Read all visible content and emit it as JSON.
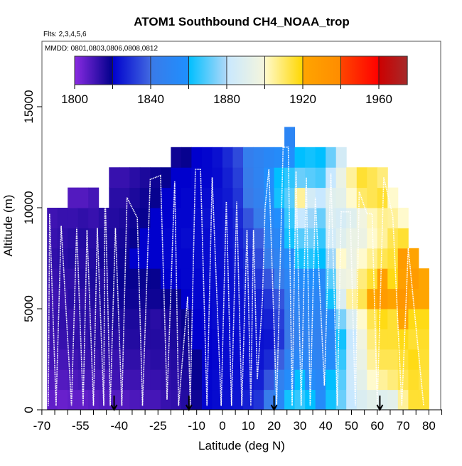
{
  "chart_data": {
    "type": "heatmap",
    "title": "ATOM1 Southbound CH4_NOAA_trop",
    "subtitle": "Flts: 2,3,4,5,6",
    "legend_note": "MMDD: 0801,0803,0806,0808,0812",
    "xlabel": "Latitude (deg N)",
    "ylabel": "Altitude (m)",
    "xlim": [
      -70,
      85
    ],
    "ylim": [
      0,
      18200
    ],
    "x_ticks": [
      -70,
      -55,
      -40,
      -25,
      -10,
      0,
      10,
      20,
      30,
      40,
      50,
      60,
      70,
      80
    ],
    "x_tick_labels": [
      "-70",
      "-55",
      "-40",
      "-25",
      "-10",
      "0",
      "10",
      "20",
      "30",
      "40",
      "50",
      "60",
      "70",
      "80"
    ],
    "y_ticks": [
      0,
      5000,
      10000,
      15000
    ],
    "y_tick_labels": [
      "0",
      "5000",
      "10000",
      "15000"
    ],
    "colorbar": {
      "range": [
        1800,
        1975
      ],
      "ticks": [
        1800,
        1840,
        1880,
        1920,
        1960
      ],
      "tick_labels": [
        "1800",
        "1840",
        "1880",
        "1920",
        "1960"
      ],
      "segments": [
        {
          "from": 1800,
          "to": 1820,
          "c0": "#8a2be2",
          "c1": "#00008b"
        },
        {
          "from": 1820,
          "to": 1840,
          "c0": "#0000cd",
          "c1": "#4169e1"
        },
        {
          "from": 1840,
          "to": 1860,
          "c0": "#3a7ae8",
          "c1": "#1e90ff"
        },
        {
          "from": 1860,
          "to": 1880,
          "c0": "#00bfff",
          "c1": "#b0d8f8"
        },
        {
          "from": 1880,
          "to": 1900,
          "c0": "#c8e8ff",
          "c1": "#f5f5dc"
        },
        {
          "from": 1900,
          "to": 1920,
          "c0": "#fffacd",
          "c1": "#ffd700"
        },
        {
          "from": 1920,
          "to": 1940,
          "c0": "#ffa500",
          "c1": "#ff8c00"
        },
        {
          "from": 1940,
          "to": 1960,
          "c0": "#ff4500",
          "c1": "#ff0000"
        },
        {
          "from": 1960,
          "to": 1975,
          "c0": "#cd0000",
          "c1": "#a52a2a"
        }
      ]
    },
    "lat_bin_deg": 4,
    "alt_bin_m": 1000,
    "columns": [
      {
        "lat": -68,
        "values": [
          1806,
          1808,
          1810,
          1811,
          1812,
          1811,
          1812,
          1813,
          1812,
          1811
        ]
      },
      {
        "lat": -64,
        "values": [
          1805,
          1808,
          1810,
          1812,
          1813,
          1812,
          1813,
          1814,
          1813,
          1812
        ]
      },
      {
        "lat": -60,
        "values": [
          1806,
          1809,
          1811,
          1813,
          1812,
          1814,
          1813,
          1815,
          1814,
          1812,
          1808
        ]
      },
      {
        "lat": -56,
        "values": [
          1806,
          1810,
          1812,
          1813,
          1814,
          1813,
          1815,
          1814,
          1815,
          1813,
          1808
        ]
      },
      {
        "lat": -52,
        "values": [
          1807,
          1810,
          1812,
          1814,
          1813,
          1815,
          1816,
          1815,
          1814,
          1812,
          1810
        ]
      },
      {
        "lat": -48,
        "values": [
          1808,
          1810,
          1813,
          1814,
          1815,
          1816,
          1815,
          1817,
          1816,
          1814
        ]
      },
      {
        "lat": -44,
        "values": [
          1808,
          1811,
          1812,
          1814,
          1816,
          1817,
          1818,
          1817,
          1816,
          1815,
          1814,
          1812
        ]
      },
      {
        "lat": -40,
        "values": [
          1808,
          1811,
          1813,
          1815,
          1816,
          1818,
          1819,
          1818,
          1817,
          1816,
          1814,
          1812
        ]
      },
      {
        "lat": -36,
        "values": [
          1809,
          1811,
          1813,
          1815,
          1816,
          1818,
          1819,
          1820,
          1819,
          1818,
          1816,
          1814
        ]
      },
      {
        "lat": -32,
        "values": [
          1810,
          1812,
          1813,
          1815,
          1816,
          1818,
          1819,
          1820,
          1820,
          1819,
          1818,
          1816
        ]
      },
      {
        "lat": -28,
        "values": [
          1810,
          1812,
          1814,
          1815,
          1814,
          1818,
          1819,
          1820,
          1820,
          1820,
          1819,
          1818
        ]
      },
      {
        "lat": -24,
        "values": [
          1812,
          1813,
          1814,
          1815,
          1816,
          1819,
          1820,
          1821,
          1821,
          1820,
          1820,
          1819
        ]
      },
      {
        "lat": -20,
        "values": [
          1813,
          1814,
          1815,
          1816,
          1817,
          1819,
          1820,
          1821,
          1821,
          1821,
          1820,
          1820,
          1818
        ]
      },
      {
        "lat": -16,
        "values": [
          1815,
          1816,
          1817,
          1818,
          1819,
          1820,
          1821,
          1821,
          1822,
          1821,
          1821,
          1820,
          1819
        ]
      },
      {
        "lat": -12,
        "values": [
          1818,
          1819,
          1819,
          1820,
          1820,
          1821,
          1821,
          1822,
          1822,
          1822,
          1821,
          1821,
          1820
        ]
      },
      {
        "lat": -8,
        "values": [
          1821,
          1821,
          1820,
          1820,
          1821,
          1821,
          1822,
          1822,
          1822,
          1823,
          1822,
          1821,
          1821
        ]
      },
      {
        "lat": -4,
        "values": [
          1822,
          1822,
          1821,
          1821,
          1822,
          1822,
          1822,
          1823,
          1823,
          1823,
          1823,
          1822,
          1823
        ]
      },
      {
        "lat": 0,
        "values": [
          1823,
          1822,
          1822,
          1822,
          1822,
          1823,
          1823,
          1823,
          1824,
          1824,
          1825,
          1826,
          1828
        ]
      },
      {
        "lat": 4,
        "values": [
          1824,
          1823,
          1822,
          1822,
          1823,
          1823,
          1824,
          1825,
          1826,
          1828,
          1830,
          1832,
          1834
        ]
      },
      {
        "lat": 8,
        "values": [
          1826,
          1824,
          1823,
          1823,
          1824,
          1825,
          1827,
          1829,
          1832,
          1836,
          1840,
          1842,
          1844
        ]
      },
      {
        "lat": 12,
        "values": [
          1830,
          1826,
          1824,
          1823,
          1825,
          1826,
          1830,
          1834,
          1838,
          1842,
          1846,
          1848,
          1848
        ]
      },
      {
        "lat": 16,
        "values": [
          1842,
          1836,
          1828,
          1824,
          1826,
          1830,
          1836,
          1842,
          1848,
          1852,
          1856,
          1858,
          1852
        ]
      },
      {
        "lat": 20,
        "values": [
          1852,
          1846,
          1838,
          1830,
          1832,
          1836,
          1842,
          1848,
          1852,
          1858,
          1862,
          1860,
          1855
        ]
      },
      {
        "lat": 24,
        "values": [
          1862,
          1856,
          1848,
          1840,
          1842,
          1845,
          1850,
          1856,
          1862,
          1866,
          1870,
          1865,
          1858,
          1850
        ]
      },
      {
        "lat": 28,
        "values": [
          1866,
          1860,
          1852,
          1846,
          1848,
          1850,
          1856,
          1862,
          1870,
          1880,
          1905,
          1872,
          1860
        ]
      },
      {
        "lat": 32,
        "values": [
          1860,
          1856,
          1850,
          1848,
          1850,
          1852,
          1858,
          1864,
          1872,
          1878,
          1885,
          1870,
          1862
        ]
      },
      {
        "lat": 36,
        "values": [
          1856,
          1852,
          1848,
          1846,
          1848,
          1850,
          1855,
          1860,
          1866,
          1872,
          1880,
          1868,
          1860
        ]
      },
      {
        "lat": 40,
        "values": [
          1862,
          1860,
          1856,
          1852,
          1856,
          1862,
          1870,
          1878,
          1884,
          1888,
          1890,
          1880,
          1872
        ]
      },
      {
        "lat": 44,
        "values": [
          1872,
          1870,
          1866,
          1862,
          1874,
          1888,
          1896,
          1900,
          1890,
          1886,
          1892,
          1895,
          1885
        ]
      },
      {
        "lat": 48,
        "values": [
          1880,
          1882,
          1882,
          1880,
          1888,
          1905,
          1898,
          1896,
          1895,
          1890,
          1900,
          1905
        ]
      },
      {
        "lat": 52,
        "values": [
          1888,
          1892,
          1895,
          1898,
          1900,
          1912,
          1908,
          1900,
          1896,
          1898,
          1910,
          1915
        ]
      },
      {
        "lat": 56,
        "values": [
          1892,
          1900,
          1905,
          1908,
          1912,
          1920,
          1915,
          1906,
          1900,
          1902,
          1912,
          1912
        ]
      },
      {
        "lat": 60,
        "values": [
          1890,
          1905,
          1912,
          1915,
          1918,
          1928,
          1925,
          1912,
          1905,
          1906,
          1915,
          1908
        ]
      },
      {
        "lat": 64,
        "values": [
          1892,
          1908,
          1912,
          1915,
          1915,
          1922,
          1918,
          1915,
          1912,
          1905,
          1900
        ]
      },
      {
        "lat": 68,
        "values": [
          1905,
          1912,
          1915,
          1918,
          1922,
          1932,
          1925,
          1928,
          1915,
          1900
        ]
      },
      {
        "lat": 72,
        "values": [
          1915,
          1916,
          1918,
          1915,
          1918,
          1922,
          1928,
          1922
        ]
      },
      {
        "lat": 76,
        "values": [
          1915,
          1914,
          1915,
          1916,
          1918,
          1920,
          1920
        ]
      }
    ],
    "flight_track": [
      [
        -67.5,
        200
      ],
      [
        -67,
        9700
      ],
      [
        -64.5,
        200
      ],
      [
        -62.5,
        9100
      ],
      [
        -58.5,
        200
      ],
      [
        -56.5,
        9000
      ],
      [
        -54,
        200
      ],
      [
        -52.5,
        8900
      ],
      [
        -50,
        200
      ],
      [
        -48.5,
        9000
      ],
      [
        -46,
        200
      ],
      [
        -45.5,
        11000
      ],
      [
        -43.5,
        200
      ],
      [
        -41.5,
        9000
      ],
      [
        -39,
        200
      ],
      [
        -37,
        10500
      ],
      [
        -33,
        9500
      ],
      [
        -31,
        200
      ],
      [
        -28,
        11400
      ],
      [
        -24,
        11600
      ],
      [
        -21.5,
        500
      ],
      [
        -18.5,
        11300
      ],
      [
        -17,
        200
      ],
      [
        -13.5,
        5600
      ],
      [
        -12.5,
        200
      ],
      [
        -10.5,
        11900
      ],
      [
        -8.5,
        11900
      ],
      [
        -6,
        200
      ],
      [
        -4,
        11500
      ],
      [
        -0.5,
        200
      ],
      [
        1.5,
        10300
      ],
      [
        3.5,
        200
      ],
      [
        5.5,
        10300
      ],
      [
        7.5,
        200
      ],
      [
        9.5,
        8900
      ],
      [
        11,
        200
      ],
      [
        12,
        8900
      ],
      [
        13.5,
        1500
      ],
      [
        15.5,
        5500
      ],
      [
        16.5,
        10000
      ],
      [
        18,
        11900
      ],
      [
        21,
        200
      ],
      [
        23.5,
        13000
      ],
      [
        25.5,
        13000
      ],
      [
        27,
        200
      ],
      [
        28.5,
        11800
      ],
      [
        30.5,
        200
      ],
      [
        32.5,
        11500
      ],
      [
        34,
        200
      ],
      [
        36,
        10500
      ],
      [
        39.5,
        1200
      ],
      [
        42,
        11700
      ],
      [
        44.5,
        200
      ],
      [
        46,
        9800
      ],
      [
        49.5,
        9800
      ],
      [
        51.5,
        200
      ],
      [
        53,
        10800
      ],
      [
        56,
        9700
      ],
      [
        58,
        9700
      ],
      [
        60,
        200
      ],
      [
        62.5,
        11500
      ],
      [
        66,
        9600
      ],
      [
        69.5,
        200
      ],
      [
        72,
        8000
      ],
      [
        78,
        200
      ]
    ],
    "arrow_markers_lat": [
      -42,
      -13,
      20,
      61
    ]
  }
}
